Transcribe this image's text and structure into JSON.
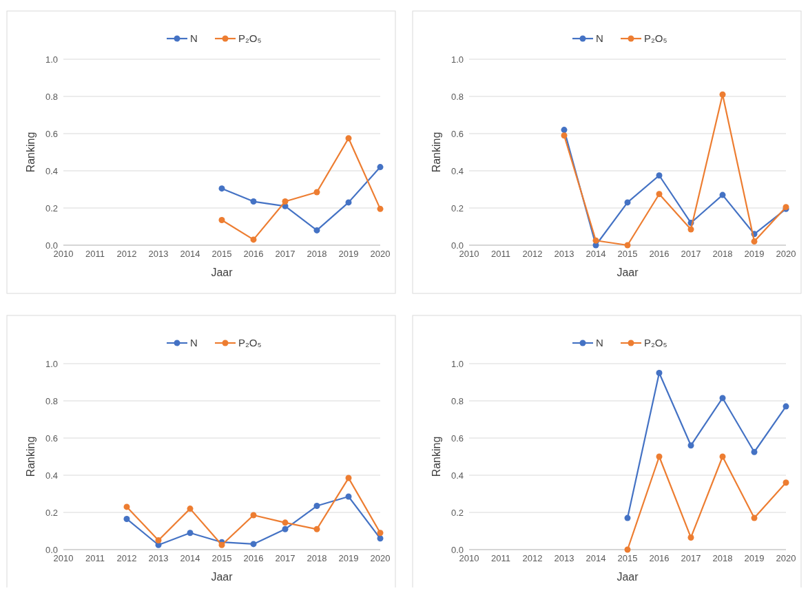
{
  "chart_data": [
    {
      "type": "line",
      "xlabel": "Jaar",
      "ylabel": "Ranking",
      "xlim": [
        2010,
        2020
      ],
      "xticks": [
        2010,
        2011,
        2012,
        2013,
        2014,
        2015,
        2016,
        2017,
        2018,
        2019,
        2020
      ],
      "ylim": [
        0,
        1
      ],
      "yticks": [
        {
          "value": 0,
          "label": "0.0"
        },
        {
          "value": 0.2,
          "label": "0.2"
        },
        {
          "value": 0.4,
          "label": "0.4"
        },
        {
          "value": 0.6,
          "label": "0.6"
        },
        {
          "value": 0.8,
          "label": "0.8"
        },
        {
          "value": 1,
          "label": "1.0"
        }
      ],
      "grid": "y",
      "legend": "top",
      "marker": "circle",
      "line_style": "solid",
      "series": [
        {
          "name": "N",
          "color": "#4472c4",
          "x": [
            2015,
            2016,
            2017,
            2018,
            2019,
            2020
          ],
          "values": [
            0.305,
            0.235,
            0.21,
            0.08,
            0.23,
            0.42
          ]
        },
        {
          "name": "P₂O₅",
          "color": "#ed7d31",
          "x": [
            2015,
            2016,
            2017,
            2018,
            2019,
            2020
          ],
          "values": [
            0.135,
            0.03,
            0.235,
            0.285,
            0.575,
            0.195
          ]
        }
      ]
    },
    {
      "type": "line",
      "xlabel": "Jaar",
      "ylabel": "Ranking",
      "xlim": [
        2010,
        2020
      ],
      "xticks": [
        2010,
        2011,
        2012,
        2013,
        2014,
        2015,
        2016,
        2017,
        2018,
        2019,
        2020
      ],
      "ylim": [
        0,
        1
      ],
      "yticks": [
        {
          "value": 0,
          "label": "0.0"
        },
        {
          "value": 0.2,
          "label": "0.2"
        },
        {
          "value": 0.4,
          "label": "0.4"
        },
        {
          "value": 0.6,
          "label": "0.6"
        },
        {
          "value": 0.8,
          "label": "0.8"
        },
        {
          "value": 1,
          "label": "1.0"
        }
      ],
      "grid": "y",
      "legend": "top",
      "marker": "circle",
      "line_style": "solid",
      "series": [
        {
          "name": "N",
          "color": "#4472c4",
          "x": [
            2013,
            2014,
            2015,
            2016,
            2017,
            2018,
            2019,
            2020
          ],
          "values": [
            0.62,
            0.0,
            0.23,
            0.375,
            0.12,
            0.27,
            0.06,
            0.195
          ]
        },
        {
          "name": "P₂O₅",
          "color": "#ed7d31",
          "x": [
            2013,
            2014,
            2015,
            2016,
            2017,
            2018,
            2019,
            2020
          ],
          "values": [
            0.59,
            0.025,
            0.0,
            0.275,
            0.085,
            0.81,
            0.02,
            0.205
          ]
        }
      ]
    },
    {
      "type": "line",
      "xlabel": "Jaar",
      "ylabel": "Ranking",
      "xlim": [
        2010,
        2020
      ],
      "xticks": [
        2010,
        2011,
        2012,
        2013,
        2014,
        2015,
        2016,
        2017,
        2018,
        2019,
        2020
      ],
      "ylim": [
        0,
        1
      ],
      "yticks": [
        {
          "value": 0,
          "label": "0.0"
        },
        {
          "value": 0.2,
          "label": "0.2"
        },
        {
          "value": 0.4,
          "label": "0.4"
        },
        {
          "value": 0.6,
          "label": "0.6"
        },
        {
          "value": 0.8,
          "label": "0.8"
        },
        {
          "value": 1,
          "label": "1.0"
        }
      ],
      "grid": "y",
      "legend": "top",
      "marker": "circle",
      "line_style": "solid",
      "series": [
        {
          "name": "N",
          "color": "#4472c4",
          "x": [
            2012,
            2013,
            2014,
            2015,
            2016,
            2017,
            2018,
            2019,
            2020
          ],
          "values": [
            0.165,
            0.025,
            0.09,
            0.04,
            0.03,
            0.11,
            0.235,
            0.285,
            0.06
          ]
        },
        {
          "name": "P₂O₅",
          "color": "#ed7d31",
          "x": [
            2012,
            2013,
            2014,
            2015,
            2016,
            2017,
            2018,
            2019,
            2020
          ],
          "values": [
            0.23,
            0.05,
            0.22,
            0.025,
            0.185,
            0.145,
            0.11,
            0.385,
            0.09
          ]
        }
      ]
    },
    {
      "type": "line",
      "xlabel": "Jaar",
      "ylabel": "Ranking",
      "xlim": [
        2010,
        2020
      ],
      "xticks": [
        2010,
        2011,
        2012,
        2013,
        2014,
        2015,
        2016,
        2017,
        2018,
        2019,
        2020
      ],
      "ylim": [
        0,
        1
      ],
      "yticks": [
        {
          "value": 0,
          "label": "0.0"
        },
        {
          "value": 0.2,
          "label": "0.2"
        },
        {
          "value": 0.4,
          "label": "0.4"
        },
        {
          "value": 0.6,
          "label": "0.6"
        },
        {
          "value": 0.8,
          "label": "0.8"
        },
        {
          "value": 1,
          "label": "1.0"
        }
      ],
      "grid": "y",
      "legend": "top",
      "marker": "circle",
      "line_style": "solid",
      "series": [
        {
          "name": "N",
          "color": "#4472c4",
          "x": [
            2015,
            2016,
            2017,
            2018,
            2019,
            2020
          ],
          "values": [
            0.17,
            0.95,
            0.56,
            0.815,
            0.525,
            0.77
          ]
        },
        {
          "name": "P₂O₅",
          "color": "#ed7d31",
          "x": [
            2015,
            2016,
            2017,
            2018,
            2019,
            2020
          ],
          "values": [
            0.0,
            0.5,
            0.065,
            0.5,
            0.17,
            0.36
          ]
        }
      ]
    }
  ]
}
